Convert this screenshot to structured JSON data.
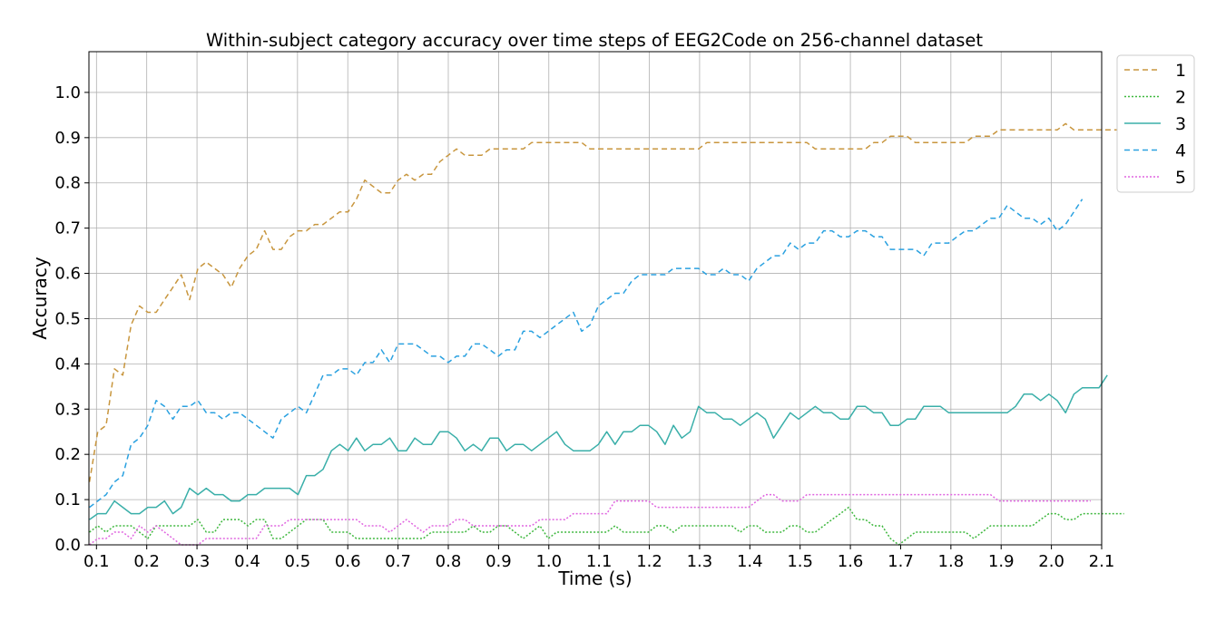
{
  "chart_data": {
    "type": "line",
    "title": "Within-subject category accuracy over time steps of EEG2Code on 256-channel dataset",
    "xlabel": "Time (s)",
    "ylabel": "Accuracy",
    "xlim": [
      0.085,
      2.1
    ],
    "ylim": [
      0.0,
      1.09
    ],
    "xticks": [
      "0.1",
      "0.2",
      "0.3",
      "0.4",
      "0.5",
      "0.6",
      "0.7",
      "0.8",
      "0.9",
      "1.0",
      "1.1",
      "1.2",
      "1.3",
      "1.4",
      "1.5",
      "1.6",
      "1.7",
      "1.8",
      "1.9",
      "2.0",
      "2.1"
    ],
    "yticks": [
      "0.0",
      "0.1",
      "0.2",
      "0.3",
      "0.4",
      "0.5",
      "0.6",
      "0.7",
      "0.8",
      "0.9",
      "1.0"
    ],
    "grid": true,
    "legend_position": "outside-top-right",
    "x_start": 0.086,
    "x_step": 0.0166,
    "series": [
      {
        "name": "1",
        "color": "#c8963e",
        "dash": "6,4",
        "values": [
          0.139,
          0.25,
          0.264,
          0.389,
          0.375,
          0.486,
          0.528,
          0.514,
          0.514,
          0.542,
          0.569,
          0.597,
          0.542,
          0.611,
          0.625,
          0.611,
          0.597,
          0.569,
          0.611,
          0.639,
          0.653,
          0.694,
          0.653,
          0.653,
          0.681,
          0.694,
          0.694,
          0.708,
          0.708,
          0.722,
          0.736,
          0.736,
          0.764,
          0.806,
          0.792,
          0.778,
          0.778,
          0.806,
          0.819,
          0.806,
          0.819,
          0.819,
          0.847,
          0.861,
          0.875,
          0.861,
          0.861,
          0.861,
          0.875,
          0.875,
          0.875,
          0.875,
          0.875,
          0.889,
          0.889,
          0.889,
          0.889,
          0.889,
          0.889,
          0.889,
          0.875,
          0.875,
          0.875,
          0.875,
          0.875,
          0.875,
          0.875,
          0.875,
          0.875,
          0.875,
          0.875,
          0.875,
          0.875,
          0.875,
          0.889,
          0.889,
          0.889,
          0.889,
          0.889,
          0.889,
          0.889,
          0.889,
          0.889,
          0.889,
          0.889,
          0.889,
          0.889,
          0.875,
          0.875,
          0.875,
          0.875,
          0.875,
          0.875,
          0.875,
          0.889,
          0.889,
          0.903,
          0.903,
          0.903,
          0.889,
          0.889,
          0.889,
          0.889,
          0.889,
          0.889,
          0.889,
          0.903,
          0.903,
          0.903,
          0.917,
          0.917,
          0.917,
          0.917,
          0.917,
          0.917,
          0.917,
          0.917,
          0.931,
          0.917,
          0.917,
          0.917,
          0.917,
          0.917,
          0.917,
          0.917,
          0.917,
          0.917,
          0.917,
          0.917,
          0.917,
          0.903
        ]
      },
      {
        "name": "2",
        "color": "#3fb83f",
        "dash": "2,2",
        "values": [
          0.028,
          0.042,
          0.028,
          0.042,
          0.042,
          0.042,
          0.028,
          0.014,
          0.042,
          0.042,
          0.042,
          0.042,
          0.042,
          0.056,
          0.028,
          0.028,
          0.056,
          0.056,
          0.056,
          0.042,
          0.056,
          0.056,
          0.014,
          0.014,
          0.028,
          0.042,
          0.056,
          0.056,
          0.056,
          0.028,
          0.028,
          0.028,
          0.014,
          0.014,
          0.014,
          0.014,
          0.014,
          0.014,
          0.014,
          0.014,
          0.014,
          0.028,
          0.028,
          0.028,
          0.028,
          0.028,
          0.042,
          0.028,
          0.028,
          0.042,
          0.042,
          0.028,
          0.014,
          0.028,
          0.042,
          0.014,
          0.028,
          0.028,
          0.028,
          0.028,
          0.028,
          0.028,
          0.028,
          0.042,
          0.028,
          0.028,
          0.028,
          0.028,
          0.042,
          0.042,
          0.028,
          0.042,
          0.042,
          0.042,
          0.042,
          0.042,
          0.042,
          0.042,
          0.028,
          0.042,
          0.042,
          0.028,
          0.028,
          0.028,
          0.042,
          0.042,
          0.028,
          0.028,
          0.042,
          0.056,
          0.069,
          0.083,
          0.056,
          0.056,
          0.042,
          0.042,
          0.014,
          0.0,
          0.014,
          0.028,
          0.028,
          0.028,
          0.028,
          0.028,
          0.028,
          0.028,
          0.014,
          0.028,
          0.042,
          0.042,
          0.042,
          0.042,
          0.042,
          0.042,
          0.056,
          0.069,
          0.069,
          0.056,
          0.056,
          0.069,
          0.069,
          0.069,
          0.069,
          0.069,
          0.069
        ]
      },
      {
        "name": "3",
        "color": "#3aafa9",
        "dash": "",
        "values": [
          0.056,
          0.069,
          0.069,
          0.097,
          0.083,
          0.069,
          0.069,
          0.083,
          0.083,
          0.097,
          0.069,
          0.083,
          0.125,
          0.111,
          0.125,
          0.111,
          0.111,
          0.097,
          0.097,
          0.111,
          0.111,
          0.125,
          0.125,
          0.125,
          0.125,
          0.111,
          0.153,
          0.153,
          0.167,
          0.208,
          0.222,
          0.208,
          0.236,
          0.208,
          0.222,
          0.222,
          0.236,
          0.208,
          0.208,
          0.236,
          0.222,
          0.222,
          0.25,
          0.25,
          0.236,
          0.208,
          0.222,
          0.208,
          0.236,
          0.236,
          0.208,
          0.222,
          0.222,
          0.208,
          0.222,
          0.236,
          0.25,
          0.222,
          0.208,
          0.208,
          0.208,
          0.222,
          0.25,
          0.222,
          0.25,
          0.25,
          0.264,
          0.264,
          0.25,
          0.222,
          0.264,
          0.236,
          0.25,
          0.306,
          0.292,
          0.292,
          0.278,
          0.278,
          0.264,
          0.278,
          0.292,
          0.278,
          0.236,
          0.264,
          0.292,
          0.278,
          0.292,
          0.306,
          0.292,
          0.292,
          0.278,
          0.278,
          0.306,
          0.306,
          0.292,
          0.292,
          0.264,
          0.264,
          0.278,
          0.278,
          0.306,
          0.306,
          0.306,
          0.292,
          0.292,
          0.292,
          0.292,
          0.292,
          0.292,
          0.292,
          0.292,
          0.306,
          0.333,
          0.333,
          0.319,
          0.333,
          0.319,
          0.292,
          0.333,
          0.347,
          0.347,
          0.347,
          0.375
        ]
      },
      {
        "name": "4",
        "color": "#2aa1e0",
        "dash": "6,4",
        "values": [
          0.083,
          0.097,
          0.111,
          0.139,
          0.153,
          0.222,
          0.236,
          0.264,
          0.319,
          0.306,
          0.278,
          0.306,
          0.306,
          0.319,
          0.292,
          0.292,
          0.278,
          0.292,
          0.292,
          0.278,
          0.264,
          0.25,
          0.236,
          0.278,
          0.292,
          0.306,
          0.292,
          0.333,
          0.375,
          0.375,
          0.389,
          0.389,
          0.375,
          0.403,
          0.403,
          0.431,
          0.403,
          0.444,
          0.444,
          0.444,
          0.431,
          0.417,
          0.417,
          0.403,
          0.417,
          0.417,
          0.444,
          0.444,
          0.431,
          0.417,
          0.431,
          0.431,
          0.472,
          0.472,
          0.458,
          0.472,
          0.486,
          0.5,
          0.514,
          0.472,
          0.486,
          0.528,
          0.542,
          0.556,
          0.556,
          0.583,
          0.597,
          0.597,
          0.597,
          0.597,
          0.611,
          0.611,
          0.611,
          0.611,
          0.597,
          0.597,
          0.611,
          0.597,
          0.597,
          0.583,
          0.611,
          0.625,
          0.639,
          0.639,
          0.667,
          0.653,
          0.667,
          0.667,
          0.694,
          0.694,
          0.681,
          0.681,
          0.694,
          0.694,
          0.681,
          0.681,
          0.653,
          0.653,
          0.653,
          0.653,
          0.639,
          0.667,
          0.667,
          0.667,
          0.681,
          0.694,
          0.694,
          0.708,
          0.722,
          0.722,
          0.75,
          0.736,
          0.722,
          0.722,
          0.708,
          0.722,
          0.694,
          0.708,
          0.736,
          0.764
        ]
      },
      {
        "name": "5",
        "color": "#e066e0",
        "dash": "2,2",
        "values": [
          0.0,
          0.014,
          0.014,
          0.028,
          0.028,
          0.014,
          0.042,
          0.028,
          0.042,
          0.028,
          0.014,
          0.0,
          0.0,
          0.0,
          0.014,
          0.014,
          0.014,
          0.014,
          0.014,
          0.014,
          0.014,
          0.042,
          0.042,
          0.042,
          0.056,
          0.056,
          0.056,
          0.056,
          0.056,
          0.056,
          0.056,
          0.056,
          0.056,
          0.042,
          0.042,
          0.042,
          0.028,
          0.042,
          0.056,
          0.042,
          0.028,
          0.042,
          0.042,
          0.042,
          0.056,
          0.056,
          0.042,
          0.042,
          0.042,
          0.042,
          0.042,
          0.042,
          0.042,
          0.042,
          0.056,
          0.056,
          0.056,
          0.056,
          0.069,
          0.069,
          0.069,
          0.069,
          0.069,
          0.097,
          0.097,
          0.097,
          0.097,
          0.097,
          0.083,
          0.083,
          0.083,
          0.083,
          0.083,
          0.083,
          0.083,
          0.083,
          0.083,
          0.083,
          0.083,
          0.083,
          0.097,
          0.111,
          0.111,
          0.097,
          0.097,
          0.097,
          0.111,
          0.111,
          0.111,
          0.111,
          0.111,
          0.111,
          0.111,
          0.111,
          0.111,
          0.111,
          0.111,
          0.111,
          0.111,
          0.111,
          0.111,
          0.111,
          0.111,
          0.111,
          0.111,
          0.111,
          0.111,
          0.111,
          0.111,
          0.097,
          0.097,
          0.097,
          0.097,
          0.097,
          0.097,
          0.097,
          0.097,
          0.097,
          0.097,
          0.097,
          0.097
        ]
      }
    ]
  }
}
